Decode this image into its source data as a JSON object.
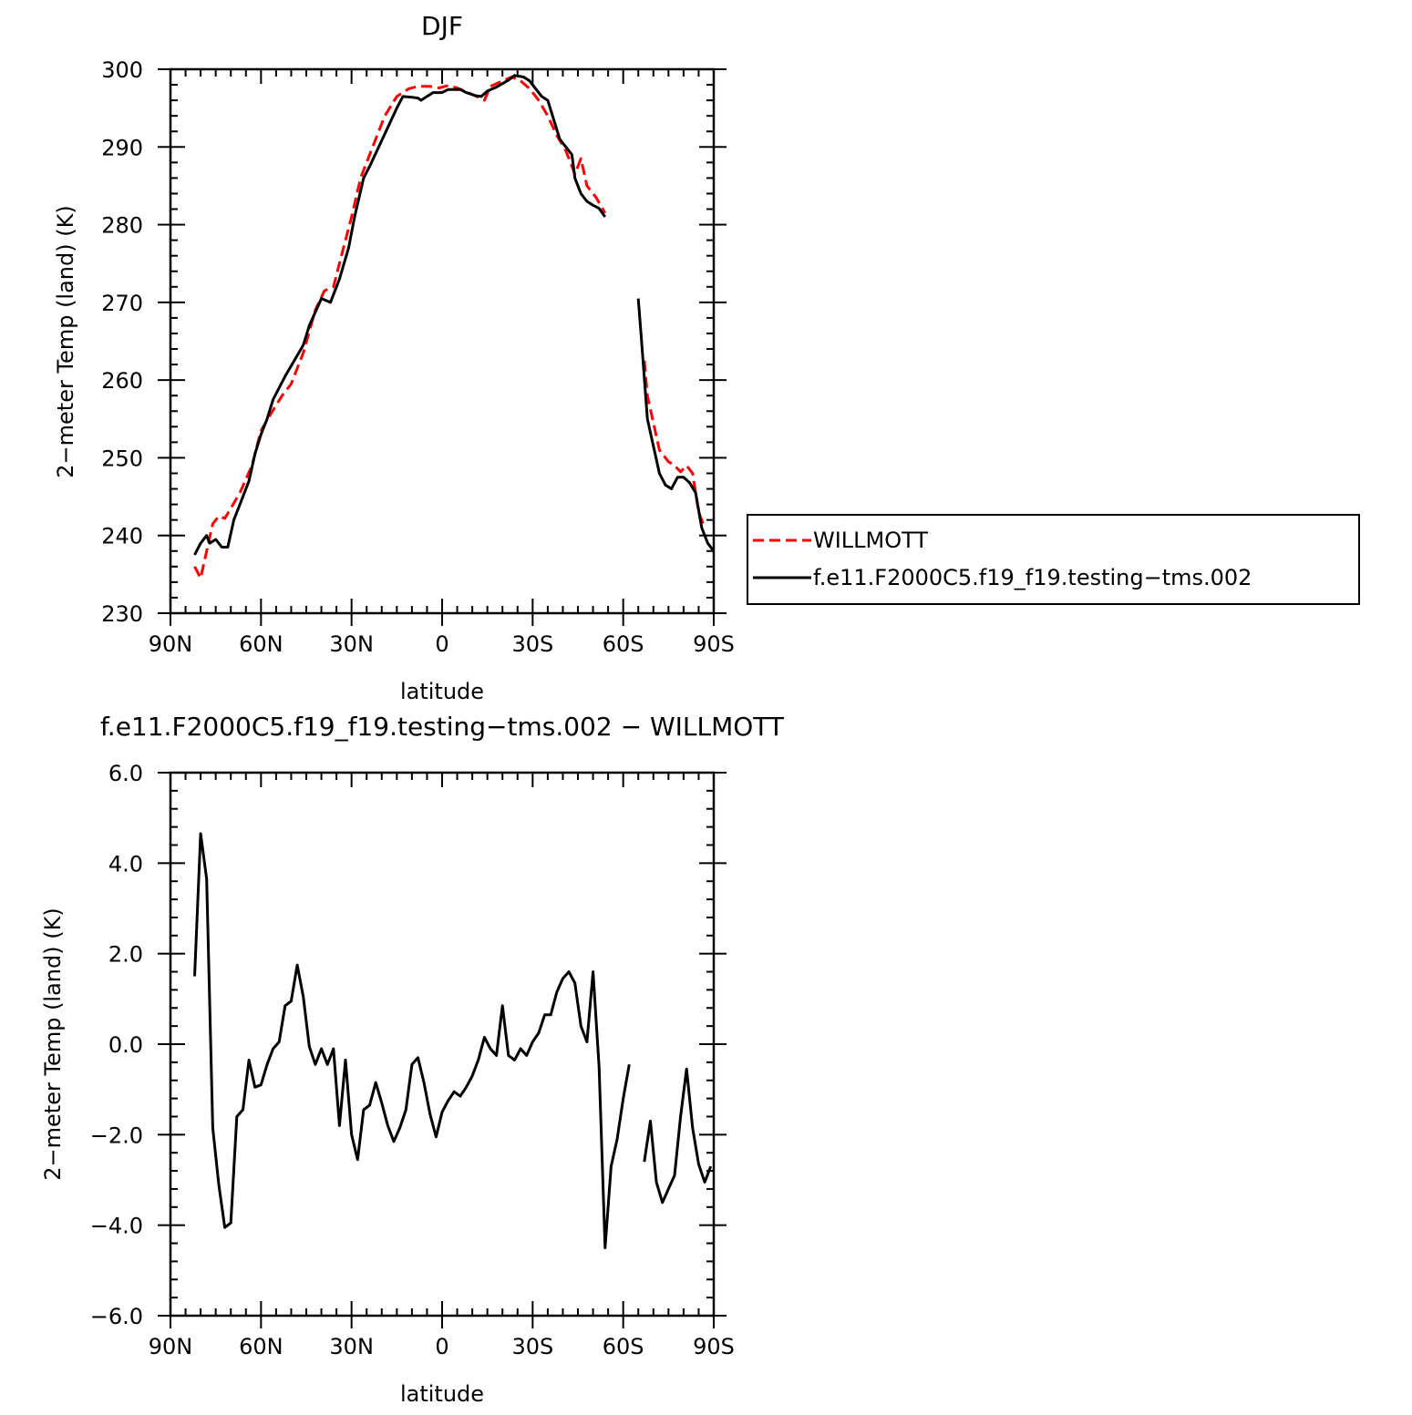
{
  "chart_data": [
    {
      "type": "line",
      "title": "DJF",
      "xlabel": "latitude",
      "ylabel": "2−meter Temp (land) (K)",
      "xlim": [
        90,
        -90
      ],
      "ylim": [
        230,
        300
      ],
      "xticks": [
        90,
        60,
        30,
        0,
        -30,
        -60,
        -90
      ],
      "xtick_labels": [
        "90N",
        "60N",
        "30N",
        "0",
        "30S",
        "60S",
        "90S"
      ],
      "yticks": [
        230,
        240,
        250,
        260,
        270,
        280,
        290,
        300
      ],
      "ytick_labels": [
        "230",
        "240",
        "250",
        "260",
        "270",
        "280",
        "290",
        "300"
      ],
      "legend_position": "right",
      "series": [
        {
          "name": "WILLMOTT",
          "color": "#ff0000",
          "dash": "dashed",
          "segments": [
            [
              [
                82,
                236
              ],
              [
                80,
                234.5
              ],
              [
                78,
                238
              ],
              [
                76,
                241.5
              ],
              [
                74,
                242.5
              ],
              [
                72,
                242.2
              ],
              [
                70,
                243.5
              ],
              [
                67,
                245.5
              ],
              [
                63,
                249
              ],
              [
                60,
                253.5
              ],
              [
                57,
                255.5
              ],
              [
                53,
                258
              ],
              [
                50,
                259.5
              ],
              [
                46,
                263.5
              ],
              [
                42,
                269
              ],
              [
                39,
                271.5
              ],
              [
                36,
                272
              ],
              [
                33,
                276.5
              ],
              [
                30,
                281
              ],
              [
                27,
                286
              ],
              [
                23,
                290
              ],
              [
                19,
                294
              ],
              [
                15,
                296.5
              ],
              [
                11,
                297.5
              ],
              [
                8,
                297.8
              ],
              [
                4,
                297.8
              ],
              [
                1,
                297.6
              ],
              [
                -2,
                297.9
              ],
              [
                -5,
                297.6
              ],
              [
                -8,
                297.1
              ],
              [
                -11,
                296.6
              ],
              [
                -14,
                296
              ],
              [
                -16,
                297.8
              ],
              [
                -20,
                298.5
              ],
              [
                -23,
                299
              ],
              [
                -26,
                298.5
              ],
              [
                -29,
                297.5
              ],
              [
                -32,
                296
              ],
              [
                -35,
                294
              ],
              [
                -38,
                291.5
              ],
              [
                -41,
                289.5
              ],
              [
                -44,
                286.5
              ],
              [
                -46,
                288.5
              ],
              [
                -48,
                285
              ],
              [
                -51,
                283.5
              ],
              [
                -54,
                281.5
              ]
            ],
            [
              [
                -67,
                262.5
              ],
              [
                -68,
                258
              ],
              [
                -70,
                254.5
              ],
              [
                -72,
                251
              ],
              [
                -75,
                249.5
              ],
              [
                -77,
                249
              ],
              [
                -79,
                248.2
              ],
              [
                -81,
                249
              ],
              [
                -83,
                248
              ],
              [
                -85,
                243
              ],
              [
                -87,
                241
              ]
            ]
          ]
        },
        {
          "name": "f.e11.F2000C5.f19_f19.testing−tms.002",
          "color": "#000000",
          "dash": "solid",
          "segments": [
            [
              [
                82,
                237.5
              ],
              [
                80,
                239
              ],
              [
                78,
                240
              ],
              [
                77,
                239
              ],
              [
                75,
                239.5
              ],
              [
                73,
                238.5
              ],
              [
                71,
                238.5
              ],
              [
                69,
                242
              ],
              [
                67,
                244
              ],
              [
                64,
                247
              ],
              [
                62,
                250.5
              ],
              [
                60,
                253
              ],
              [
                58,
                255
              ],
              [
                56,
                257.5
              ],
              [
                52,
                260.5
              ],
              [
                49,
                262.5
              ],
              [
                46,
                264.5
              ],
              [
                44,
                267
              ],
              [
                40,
                270.5
              ],
              [
                37,
                270
              ],
              [
                34,
                273
              ],
              [
                31,
                277
              ],
              [
                29,
                281
              ],
              [
                26,
                286
              ],
              [
                24,
                287.5
              ],
              [
                21,
                290
              ],
              [
                18,
                292.5
              ],
              [
                15,
                295
              ],
              [
                13,
                296.5
              ],
              [
                10,
                296.4
              ],
              [
                8,
                296.3
              ],
              [
                7,
                296
              ],
              [
                5,
                296.5
              ],
              [
                3,
                297
              ],
              [
                0,
                297
              ],
              [
                -2,
                297.4
              ],
              [
                -6,
                297.4
              ],
              [
                -8,
                297
              ],
              [
                -11,
                296.6
              ],
              [
                -13,
                296.5
              ],
              [
                -15,
                297.2
              ],
              [
                -18,
                297.7
              ],
              [
                -22,
                298.6
              ],
              [
                -24,
                299.2
              ],
              [
                -27,
                299
              ],
              [
                -29,
                298.5
              ],
              [
                -31,
                297.5
              ],
              [
                -33,
                296.5
              ],
              [
                -35,
                296
              ],
              [
                -37,
                293.5
              ],
              [
                -39,
                291
              ],
              [
                -41,
                290
              ],
              [
                -43,
                289
              ],
              [
                -44,
                286
              ],
              [
                -46,
                284
              ],
              [
                -48,
                283
              ],
              [
                -50,
                282.5
              ],
              [
                -52,
                282.1
              ],
              [
                -54,
                281
              ]
            ],
            [
              [
                -65,
                270.5
              ],
              [
                -66,
                265.5
              ],
              [
                -68,
                255
              ],
              [
                -70,
                251.5
              ],
              [
                -72,
                248
              ],
              [
                -74,
                246.5
              ],
              [
                -76,
                246
              ],
              [
                -78,
                247.5
              ],
              [
                -80,
                247.5
              ],
              [
                -82,
                246.8
              ],
              [
                -84,
                245.5
              ],
              [
                -86,
                241
              ],
              [
                -88,
                239
              ],
              [
                -90,
                238
              ]
            ]
          ]
        }
      ]
    },
    {
      "type": "line",
      "title": "f.e11.F2000C5.f19_f19.testing−tms.002 − WILLMOTT",
      "xlabel": "latitude",
      "ylabel": "2−meter Temp (land) (K)",
      "xlim": [
        90,
        -90
      ],
      "ylim": [
        -6,
        6
      ],
      "xticks": [
        90,
        60,
        30,
        0,
        -30,
        -60,
        -90
      ],
      "xtick_labels": [
        "90N",
        "60N",
        "30N",
        "0",
        "30S",
        "60S",
        "90S"
      ],
      "yticks": [
        -6,
        -4,
        -2,
        0,
        2,
        4,
        6
      ],
      "ytick_labels": [
        "−6.0",
        "−4.0",
        "−2.0",
        "0.0",
        "2.0",
        "4.0",
        "6.0"
      ],
      "series": [
        {
          "color": "#000000",
          "dash": "solid",
          "segments": [
            [
              [
                82,
                1.5
              ],
              [
                80,
                4.65
              ],
              [
                78,
                3.65
              ],
              [
                76,
                -1.85
              ],
              [
                74,
                -3.1
              ],
              [
                72,
                -4.05
              ],
              [
                70,
                -3.95
              ],
              [
                68,
                -1.6
              ],
              [
                66,
                -1.45
              ],
              [
                64,
                -0.35
              ],
              [
                62,
                -0.95
              ],
              [
                60,
                -0.9
              ],
              [
                58,
                -0.45
              ],
              [
                56,
                -0.1
              ],
              [
                54,
                0.05
              ],
              [
                52,
                0.85
              ],
              [
                50,
                0.95
              ],
              [
                48,
                1.75
              ],
              [
                46,
                1.05
              ],
              [
                44,
                -0.05
              ],
              [
                42,
                -0.45
              ],
              [
                40,
                -0.1
              ],
              [
                38,
                -0.45
              ],
              [
                36,
                -0.1
              ],
              [
                34,
                -1.8
              ],
              [
                32,
                -0.35
              ],
              [
                30,
                -2.0
              ],
              [
                28,
                -2.55
              ],
              [
                26,
                -1.45
              ],
              [
                24,
                -1.35
              ],
              [
                22,
                -0.85
              ],
              [
                20,
                -1.3
              ],
              [
                18,
                -1.8
              ],
              [
                16,
                -2.15
              ],
              [
                14,
                -1.85
              ],
              [
                12,
                -1.45
              ],
              [
                10,
                -0.45
              ],
              [
                8,
                -0.3
              ],
              [
                6,
                -0.85
              ],
              [
                4,
                -1.55
              ],
              [
                2,
                -2.05
              ],
              [
                0,
                -1.5
              ],
              [
                -2,
                -1.25
              ],
              [
                -4,
                -1.05
              ],
              [
                -6,
                -1.15
              ],
              [
                -8,
                -0.95
              ],
              [
                -10,
                -0.7
              ],
              [
                -12,
                -0.35
              ],
              [
                -14,
                0.15
              ],
              [
                -16,
                -0.1
              ],
              [
                -18,
                -0.25
              ],
              [
                -20,
                0.85
              ],
              [
                -22,
                -0.25
              ],
              [
                -24,
                -0.35
              ],
              [
                -26,
                -0.1
              ],
              [
                -28,
                -0.25
              ],
              [
                -30,
                0.05
              ],
              [
                -32,
                0.25
              ],
              [
                -34,
                0.65
              ],
              [
                -36,
                0.65
              ],
              [
                -38,
                1.15
              ],
              [
                -40,
                1.45
              ],
              [
                -42,
                1.6
              ],
              [
                -44,
                1.35
              ],
              [
                -46,
                0.4
              ],
              [
                -48,
                0.05
              ],
              [
                -50,
                1.6
              ],
              [
                -52,
                -0.5
              ],
              [
                -54,
                -4.5
              ],
              [
                -56,
                -2.7
              ],
              [
                -58,
                -2.1
              ],
              [
                -60,
                -1.2
              ],
              [
                -62,
                -0.45
              ]
            ],
            [
              [
                -67,
                -2.6
              ],
              [
                -69,
                -1.7
              ],
              [
                -71,
                -3.05
              ],
              [
                -73,
                -3.5
              ],
              [
                -75,
                -3.2
              ],
              [
                -77,
                -2.9
              ],
              [
                -79,
                -1.6
              ],
              [
                -81,
                -0.55
              ],
              [
                -83,
                -1.85
              ],
              [
                -85,
                -2.65
              ],
              [
                -87,
                -3.05
              ],
              [
                -89,
                -2.7
              ]
            ]
          ]
        }
      ]
    }
  ]
}
